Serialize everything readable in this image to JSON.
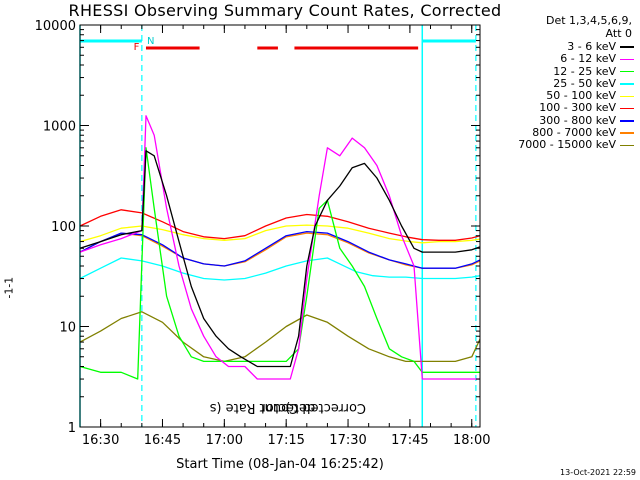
{
  "chart_data": {
    "type": "line",
    "title": "RHESSI Observing Summary Count Rates, Corrected",
    "xlabel": "Start Time (08-Jan-04 16:25:42)",
    "ylabel_main": "Corrected Count Rate (s",
    "ylabel_sup1": "-1",
    "ylabel_mid": " detector",
    "ylabel_sup2": "-1",
    "ylabel_end": ")",
    "yscale": "log",
    "ylim": [
      1,
      10000
    ],
    "xlim": [
      "16:25",
      "18:02"
    ],
    "x_ticks": [
      "16:30",
      "16:45",
      "17:00",
      "17:15",
      "17:30",
      "17:45",
      "18:00"
    ],
    "y_ticks": [
      "1",
      "10",
      "100",
      "1000",
      "10000"
    ],
    "legend_header": [
      "Det 1,3,4,5,6,9,",
      "Att 0"
    ],
    "legend_position": "right",
    "flags": {
      "F": "F",
      "N": "N"
    },
    "series": [
      {
        "name": "3 - 6 keV",
        "color": "#000000",
        "points": [
          [
            "16:25",
            60
          ],
          [
            "16:30",
            70
          ],
          [
            "16:35",
            82
          ],
          [
            "16:40",
            90
          ],
          [
            "16:41",
            560
          ],
          [
            "16:43",
            500
          ],
          [
            "16:46",
            200
          ],
          [
            "16:49",
            70
          ],
          [
            "16:52",
            25
          ],
          [
            "16:55",
            12
          ],
          [
            "16:58",
            8
          ],
          [
            "17:01",
            6
          ],
          [
            "17:04",
            5
          ],
          [
            "17:08",
            4
          ],
          [
            "17:11",
            4
          ],
          [
            "17:14",
            4
          ],
          [
            "17:16",
            4
          ],
          [
            "17:18",
            8
          ],
          [
            "17:20",
            40
          ],
          [
            "17:22",
            100
          ],
          [
            "17:25",
            180
          ],
          [
            "17:28",
            250
          ],
          [
            "17:31",
            380
          ],
          [
            "17:34",
            420
          ],
          [
            "17:37",
            300
          ],
          [
            "17:40",
            180
          ],
          [
            "17:43",
            100
          ],
          [
            "17:46",
            60
          ],
          [
            "17:48",
            55
          ],
          [
            "17:52",
            55
          ],
          [
            "17:56",
            55
          ],
          [
            "18:00",
            58
          ],
          [
            "18:02",
            62
          ]
        ]
      },
      {
        "name": "6 - 12 keV",
        "color": "#ff00ff",
        "points": [
          [
            "16:25",
            55
          ],
          [
            "16:30",
            65
          ],
          [
            "16:35",
            75
          ],
          [
            "16:40",
            90
          ],
          [
            "16:41",
            1250
          ],
          [
            "16:43",
            800
          ],
          [
            "16:46",
            150
          ],
          [
            "16:49",
            40
          ],
          [
            "16:52",
            15
          ],
          [
            "16:55",
            8
          ],
          [
            "16:58",
            5
          ],
          [
            "17:01",
            4
          ],
          [
            "17:05",
            4
          ],
          [
            "17:08",
            3
          ],
          [
            "17:12",
            3
          ],
          [
            "17:16",
            3
          ],
          [
            "17:18",
            6
          ],
          [
            "17:20",
            30
          ],
          [
            "17:23",
            200
          ],
          [
            "17:25",
            600
          ],
          [
            "17:28",
            500
          ],
          [
            "17:31",
            750
          ],
          [
            "17:34",
            600
          ],
          [
            "17:37",
            400
          ],
          [
            "17:40",
            200
          ],
          [
            "17:43",
            80
          ],
          [
            "17:46",
            40
          ],
          [
            "17:48",
            3
          ],
          [
            "17:52",
            3
          ],
          [
            "17:56",
            3
          ],
          [
            "18:00",
            3
          ],
          [
            "18:02",
            3
          ]
        ]
      },
      {
        "name": "12 - 25 keV",
        "color": "#00ff00",
        "points": [
          [
            "16:25",
            4
          ],
          [
            "16:30",
            3.5
          ],
          [
            "16:35",
            3.5
          ],
          [
            "16:39",
            3
          ],
          [
            "16:41",
            600
          ],
          [
            "16:43",
            150
          ],
          [
            "16:46",
            20
          ],
          [
            "16:49",
            8
          ],
          [
            "16:52",
            5
          ],
          [
            "16:55",
            4.5
          ],
          [
            "17:00",
            4.5
          ],
          [
            "17:05",
            4.5
          ],
          [
            "17:10",
            4.5
          ],
          [
            "17:15",
            4.5
          ],
          [
            "17:18",
            6
          ],
          [
            "17:20",
            20
          ],
          [
            "17:23",
            150
          ],
          [
            "17:25",
            180
          ],
          [
            "17:28",
            60
          ],
          [
            "17:31",
            40
          ],
          [
            "17:34",
            25
          ],
          [
            "17:37",
            12
          ],
          [
            "17:40",
            6
          ],
          [
            "17:43",
            5
          ],
          [
            "17:46",
            4.5
          ],
          [
            "17:48",
            3.5
          ],
          [
            "17:52",
            3.5
          ],
          [
            "17:56",
            3.5
          ],
          [
            "18:00",
            3.5
          ],
          [
            "18:02",
            3.5
          ]
        ]
      },
      {
        "name": "25 - 50 keV",
        "color": "#00ffff",
        "points": [
          [
            "16:25",
            30
          ],
          [
            "16:30",
            38
          ],
          [
            "16:35",
            48
          ],
          [
            "16:40",
            45
          ],
          [
            "16:45",
            40
          ],
          [
            "16:50",
            34
          ],
          [
            "16:55",
            30
          ],
          [
            "17:00",
            29
          ],
          [
            "17:05",
            30
          ],
          [
            "17:10",
            34
          ],
          [
            "17:15",
            40
          ],
          [
            "17:20",
            45
          ],
          [
            "17:25",
            48
          ],
          [
            "17:28",
            42
          ],
          [
            "17:32",
            35
          ],
          [
            "17:36",
            32
          ],
          [
            "17:40",
            31
          ],
          [
            "17:44",
            31
          ],
          [
            "17:48",
            30
          ],
          [
            "17:52",
            30
          ],
          [
            "17:56",
            30
          ],
          [
            "18:00",
            31
          ],
          [
            "18:02",
            32
          ]
        ]
      },
      {
        "name": "50 - 100 keV",
        "color": "#ffff00",
        "points": [
          [
            "16:25",
            70
          ],
          [
            "16:30",
            80
          ],
          [
            "16:35",
            95
          ],
          [
            "16:40",
            100
          ],
          [
            "16:45",
            92
          ],
          [
            "16:50",
            82
          ],
          [
            "16:55",
            75
          ],
          [
            "17:00",
            72
          ],
          [
            "17:05",
            75
          ],
          [
            "17:10",
            90
          ],
          [
            "17:15",
            100
          ],
          [
            "17:20",
            102
          ],
          [
            "17:25",
            100
          ],
          [
            "17:30",
            95
          ],
          [
            "17:35",
            85
          ],
          [
            "17:40",
            75
          ],
          [
            "17:45",
            70
          ],
          [
            "17:48",
            68
          ],
          [
            "17:52",
            70
          ],
          [
            "17:56",
            70
          ],
          [
            "18:00",
            72
          ],
          [
            "18:02",
            74
          ]
        ]
      },
      {
        "name": "100 - 300 keV",
        "color": "#ff0000",
        "points": [
          [
            "16:25",
            100
          ],
          [
            "16:30",
            125
          ],
          [
            "16:35",
            145
          ],
          [
            "16:40",
            135
          ],
          [
            "16:45",
            110
          ],
          [
            "16:50",
            88
          ],
          [
            "16:55",
            78
          ],
          [
            "17:00",
            75
          ],
          [
            "17:05",
            80
          ],
          [
            "17:10",
            100
          ],
          [
            "17:15",
            120
          ],
          [
            "17:20",
            130
          ],
          [
            "17:25",
            125
          ],
          [
            "17:30",
            110
          ],
          [
            "17:35",
            95
          ],
          [
            "17:40",
            85
          ],
          [
            "17:44",
            78
          ],
          [
            "17:48",
            73
          ],
          [
            "17:52",
            72
          ],
          [
            "17:56",
            72
          ],
          [
            "18:00",
            76
          ],
          [
            "18:02",
            80
          ]
        ]
      },
      {
        "name": "300 - 800 keV",
        "color": "#0000ff",
        "points": [
          [
            "16:25",
            55
          ],
          [
            "16:30",
            70
          ],
          [
            "16:35",
            85
          ],
          [
            "16:40",
            82
          ],
          [
            "16:45",
            65
          ],
          [
            "16:50",
            48
          ],
          [
            "16:55",
            42
          ],
          [
            "17:00",
            40
          ],
          [
            "17:05",
            45
          ],
          [
            "17:10",
            60
          ],
          [
            "17:15",
            80
          ],
          [
            "17:20",
            88
          ],
          [
            "17:25",
            85
          ],
          [
            "17:30",
            70
          ],
          [
            "17:35",
            55
          ],
          [
            "17:40",
            46
          ],
          [
            "17:44",
            42
          ],
          [
            "17:48",
            38
          ],
          [
            "17:52",
            38
          ],
          [
            "17:56",
            38
          ],
          [
            "18:00",
            42
          ],
          [
            "18:02",
            46
          ]
        ]
      },
      {
        "name": "800 - 7000 keV",
        "color": "#ff8000",
        "points": [
          [
            "16:25",
            55
          ],
          [
            "16:30",
            70
          ],
          [
            "16:35",
            85
          ],
          [
            "16:40",
            80
          ],
          [
            "16:45",
            63
          ],
          [
            "16:50",
            48
          ],
          [
            "16:55",
            42
          ],
          [
            "17:00",
            40
          ],
          [
            "17:05",
            44
          ],
          [
            "17:10",
            58
          ],
          [
            "17:15",
            78
          ],
          [
            "17:20",
            85
          ],
          [
            "17:25",
            82
          ],
          [
            "17:30",
            68
          ],
          [
            "17:35",
            54
          ],
          [
            "17:40",
            46
          ],
          [
            "17:44",
            41
          ],
          [
            "17:48",
            38
          ],
          [
            "17:52",
            38
          ],
          [
            "17:56",
            38
          ],
          [
            "18:00",
            41
          ],
          [
            "18:02",
            45
          ]
        ]
      },
      {
        "name": "7000 - 15000 keV",
        "color": "#808000",
        "points": [
          [
            "16:25",
            7
          ],
          [
            "16:30",
            9
          ],
          [
            "16:35",
            12
          ],
          [
            "16:40",
            14
          ],
          [
            "16:45",
            11
          ],
          [
            "16:50",
            7
          ],
          [
            "16:55",
            5
          ],
          [
            "17:00",
            4.5
          ],
          [
            "17:05",
            5
          ],
          [
            "17:10",
            7
          ],
          [
            "17:15",
            10
          ],
          [
            "17:20",
            13
          ],
          [
            "17:25",
            11
          ],
          [
            "17:30",
            8
          ],
          [
            "17:35",
            6
          ],
          [
            "17:40",
            5
          ],
          [
            "17:44",
            4.5
          ],
          [
            "17:48",
            4.5
          ],
          [
            "17:52",
            4.5
          ],
          [
            "17:56",
            4.5
          ],
          [
            "18:00",
            5
          ],
          [
            "18:02",
            7.5
          ]
        ]
      }
    ],
    "night_intervals": [
      [
        "16:25",
        "16:40"
      ],
      [
        "17:48",
        "18:01"
      ]
    ],
    "flare_intervals": [
      [
        "16:41",
        "16:54"
      ],
      [
        "17:08",
        "17:13"
      ],
      [
        "17:17",
        "17:47"
      ]
    ],
    "stamp": "13-Oct-2021 22:59"
  }
}
